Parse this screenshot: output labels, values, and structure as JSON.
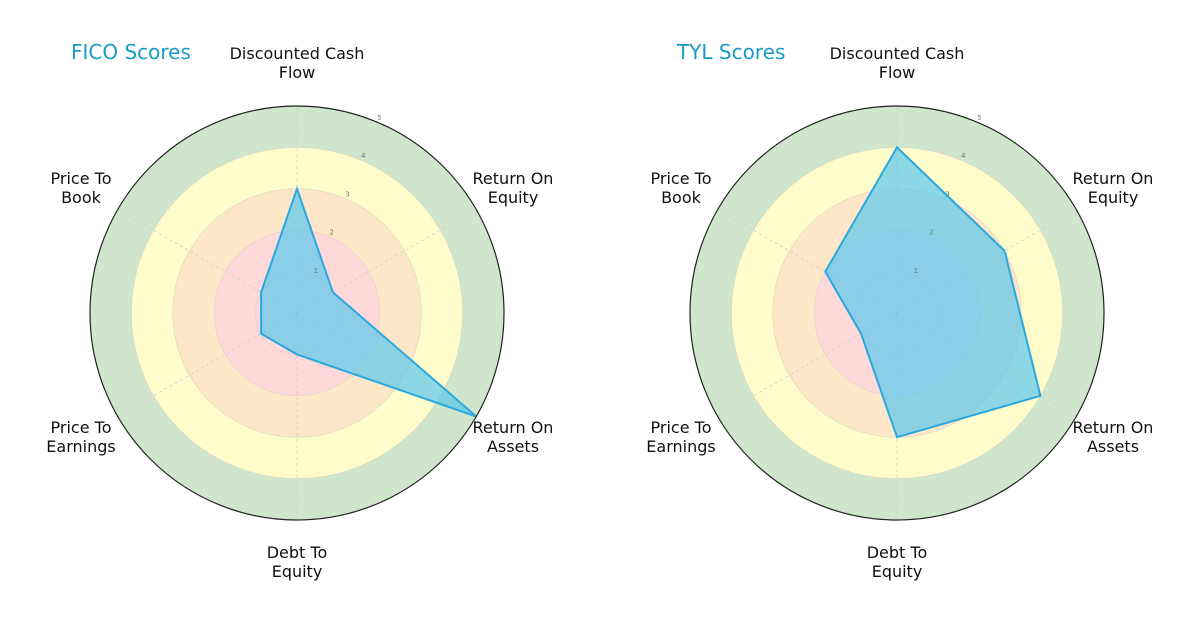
{
  "chart_data": [
    {
      "type": "radar",
      "title": "FICO Scores",
      "categories": [
        "Discounted Cash Flow",
        "Return On Equity",
        "Return On Assets",
        "Debt To Equity",
        "Price To Earnings",
        "Price To Book"
      ],
      "series": [
        {
          "name": "FICO",
          "values": [
            3,
            1,
            5,
            1,
            1,
            1
          ]
        }
      ],
      "rlim": [
        0,
        5
      ],
      "rticks": [
        1,
        2,
        3,
        4,
        5
      ],
      "band_colors": [
        "#ffd9d9",
        "#ffd9d9",
        "#fde7c8",
        "#fffccc",
        "#cfe6cc"
      ],
      "fill_color": "#5bc8ec",
      "line_color": "#29a9e0"
    },
    {
      "type": "radar",
      "title": "TYL Scores",
      "categories": [
        "Discounted Cash Flow",
        "Return On Equity",
        "Return On Assets",
        "Debt To Equity",
        "Price To Earnings",
        "Price To Book"
      ],
      "series": [
        {
          "name": "TYL",
          "values": [
            4,
            3,
            4,
            3,
            1,
            2
          ]
        }
      ],
      "rlim": [
        0,
        5
      ],
      "rticks": [
        1,
        2,
        3,
        4,
        5
      ],
      "band_colors": [
        "#ffd9d9",
        "#ffd9d9",
        "#fde7c8",
        "#fffccc",
        "#cfe6cc"
      ],
      "fill_color": "#5bc8ec",
      "line_color": "#29a9e0"
    }
  ],
  "charts": [
    {
      "title": "FICO Scores",
      "labels": {
        "dcf": "Discounted Cash\nFlow",
        "roe": "Return On\nEquity",
        "roa": "Return On\nAssets",
        "dte": "Debt To\nEquity",
        "pte": "Price To\nEarnings",
        "ptb": "Price To\nBook"
      }
    },
    {
      "title": "TYL Scores",
      "labels": {
        "dcf": "Discounted Cash\nFlow",
        "roe": "Return On\nEquity",
        "roa": "Return On\nAssets",
        "dte": "Debt To\nEquity",
        "pte": "Price To\nEarnings",
        "ptb": "Price To\nBook"
      }
    }
  ]
}
